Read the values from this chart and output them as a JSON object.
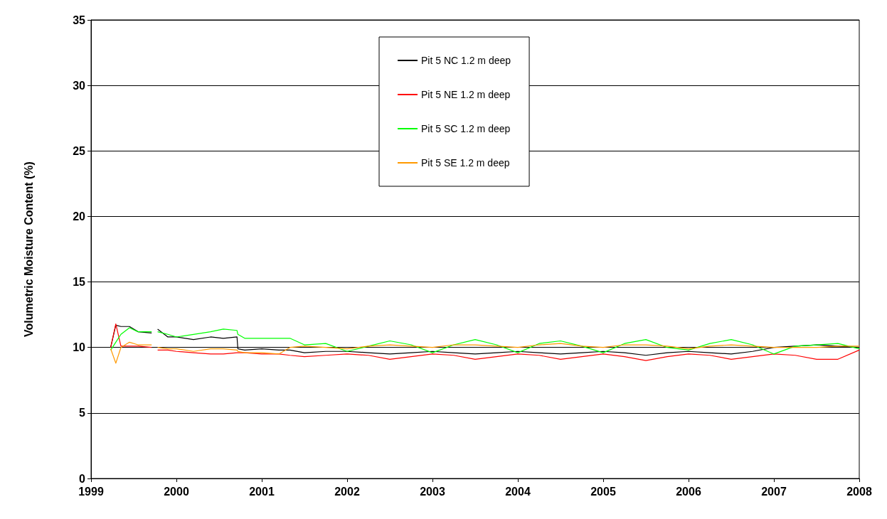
{
  "chart_data": {
    "type": "line",
    "ylabel": "Volumetric Moisture Content (%)",
    "x": [
      1999.23,
      1999.29,
      1999.35,
      1999.45,
      1999.55,
      1999.71,
      1999.74,
      1999.78,
      1999.9,
      2000.0,
      2000.2,
      2000.4,
      2000.55,
      2000.71,
      2000.72,
      2000.8,
      2001.0,
      2001.2,
      2001.33,
      2001.5,
      2001.75,
      2002.0,
      2002.25,
      2002.5,
      2002.75,
      2003.0,
      2003.25,
      2003.5,
      2003.75,
      2004.0,
      2004.25,
      2004.5,
      2004.75,
      2005.0,
      2005.25,
      2005.5,
      2005.75,
      2006.0,
      2006.25,
      2006.5,
      2006.75,
      2007.0,
      2007.25,
      2007.5,
      2007.75,
      2008.0
    ],
    "series": [
      {
        "name": "Pit 5 NC 1.2 m deep",
        "color": "#000000",
        "values": [
          10.0,
          11.7,
          11.6,
          11.6,
          11.2,
          11.1,
          null,
          11.4,
          10.8,
          10.8,
          10.6,
          10.8,
          10.7,
          10.8,
          9.9,
          9.8,
          9.9,
          9.8,
          9.8,
          9.6,
          9.7,
          9.7,
          9.6,
          9.5,
          9.6,
          9.7,
          9.6,
          9.5,
          9.6,
          9.7,
          9.6,
          9.5,
          9.6,
          9.7,
          9.6,
          9.4,
          9.6,
          9.7,
          9.6,
          9.5,
          9.7,
          10.0,
          10.1,
          10.2,
          10.1,
          10.0
        ]
      },
      {
        "name": "Pit 5 NE 1.2 m deep",
        "color": "#ff0000",
        "values": [
          10.0,
          11.8,
          10.1,
          10.1,
          10.1,
          10.0,
          null,
          9.8,
          9.8,
          9.7,
          9.6,
          9.5,
          9.5,
          9.6,
          9.6,
          9.6,
          9.5,
          9.5,
          9.4,
          9.3,
          9.4,
          9.5,
          9.4,
          9.1,
          9.3,
          9.5,
          9.4,
          9.1,
          9.3,
          9.5,
          9.4,
          9.1,
          9.3,
          9.5,
          9.3,
          9.0,
          9.3,
          9.5,
          9.4,
          9.1,
          9.3,
          9.5,
          9.4,
          9.1,
          9.1,
          9.8
        ]
      },
      {
        "name": "Pit 5 SC 1.2 m deep",
        "color": "#00ff00",
        "values": [
          9.8,
          10.4,
          11.0,
          11.5,
          11.2,
          11.2,
          null,
          11.2,
          11.0,
          10.8,
          11.0,
          11.2,
          11.4,
          11.3,
          11.0,
          10.7,
          10.7,
          10.7,
          10.7,
          10.2,
          10.3,
          9.7,
          10.1,
          10.5,
          10.2,
          9.6,
          10.2,
          10.6,
          10.2,
          9.6,
          10.3,
          10.5,
          10.1,
          9.6,
          10.3,
          10.6,
          10.0,
          9.8,
          10.3,
          10.6,
          10.2,
          9.5,
          10.1,
          10.2,
          10.3,
          9.9
        ]
      },
      {
        "name": "Pit 5 SE 1.2 m deep",
        "color": "#ff9900",
        "values": [
          9.9,
          8.8,
          10.0,
          10.4,
          10.2,
          10.2,
          null,
          10.0,
          9.9,
          9.9,
          9.7,
          9.9,
          9.9,
          9.8,
          9.7,
          9.6,
          9.6,
          9.5,
          10.0,
          10.1,
          10.0,
          9.9,
          10.1,
          10.2,
          10.1,
          10.0,
          10.2,
          10.2,
          10.1,
          10.0,
          10.2,
          10.3,
          10.1,
          10.0,
          10.2,
          10.2,
          10.1,
          9.9,
          10.1,
          10.2,
          10.1,
          10.0,
          10.0,
          10.0,
          10.1,
          10.1
        ]
      }
    ],
    "xlim": [
      1999,
      2008
    ],
    "xticks": [
      1999,
      2000,
      2001,
      2002,
      2003,
      2004,
      2005,
      2006,
      2007,
      2008
    ],
    "ylim": [
      0,
      35
    ],
    "yticks": [
      0,
      5,
      10,
      15,
      20,
      25,
      30,
      35
    ],
    "grid": "y",
    "legend": "top",
    "marker": "none",
    "line_style": "solid"
  }
}
